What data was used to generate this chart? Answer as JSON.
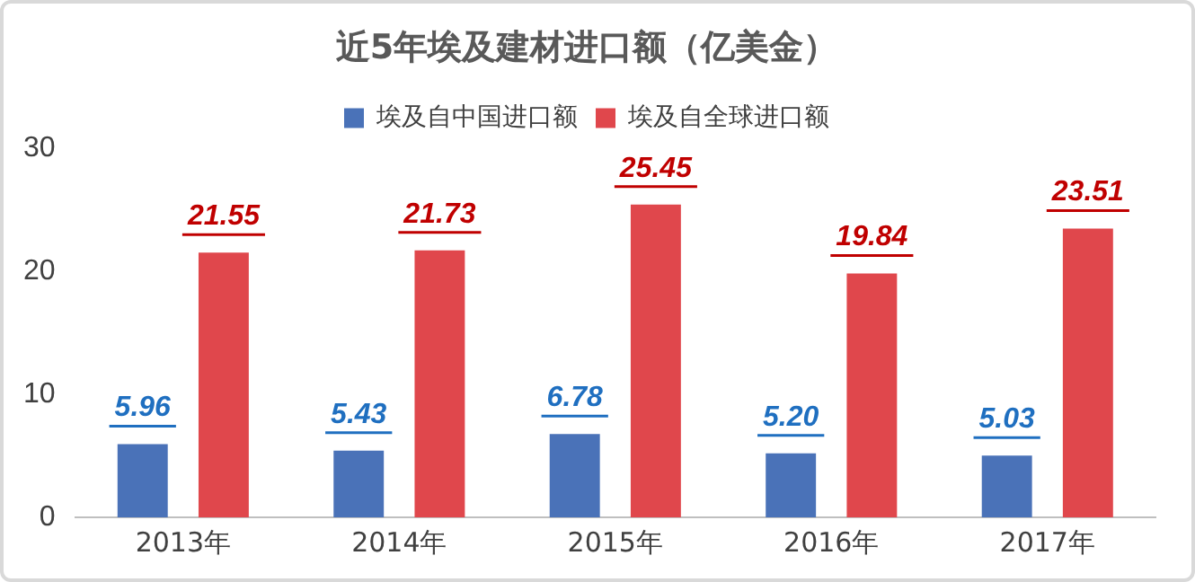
{
  "chart_data": {
    "type": "bar",
    "title": "近5年埃及建材进口额（亿美金）",
    "categories": [
      "2013年",
      "2014年",
      "2015年",
      "2016年",
      "2017年"
    ],
    "series": [
      {
        "name": "埃及自中国进口额",
        "color": "#4a72b8",
        "values": [
          5.96,
          5.43,
          6.78,
          5.2,
          5.03
        ],
        "value_labels": [
          "5.96",
          "5.43",
          "6.78",
          "5.20",
          "5.03"
        ]
      },
      {
        "name": "埃及自全球进口额",
        "color": "#e0474c",
        "values": [
          21.55,
          21.73,
          25.45,
          19.84,
          23.51
        ],
        "value_labels": [
          "21.55",
          "21.73",
          "25.45",
          "19.84",
          "23.51"
        ]
      }
    ],
    "ylim": [
      0,
      30
    ],
    "yticks": [
      0,
      10,
      20,
      30
    ],
    "grid": false,
    "legend": "top"
  }
}
